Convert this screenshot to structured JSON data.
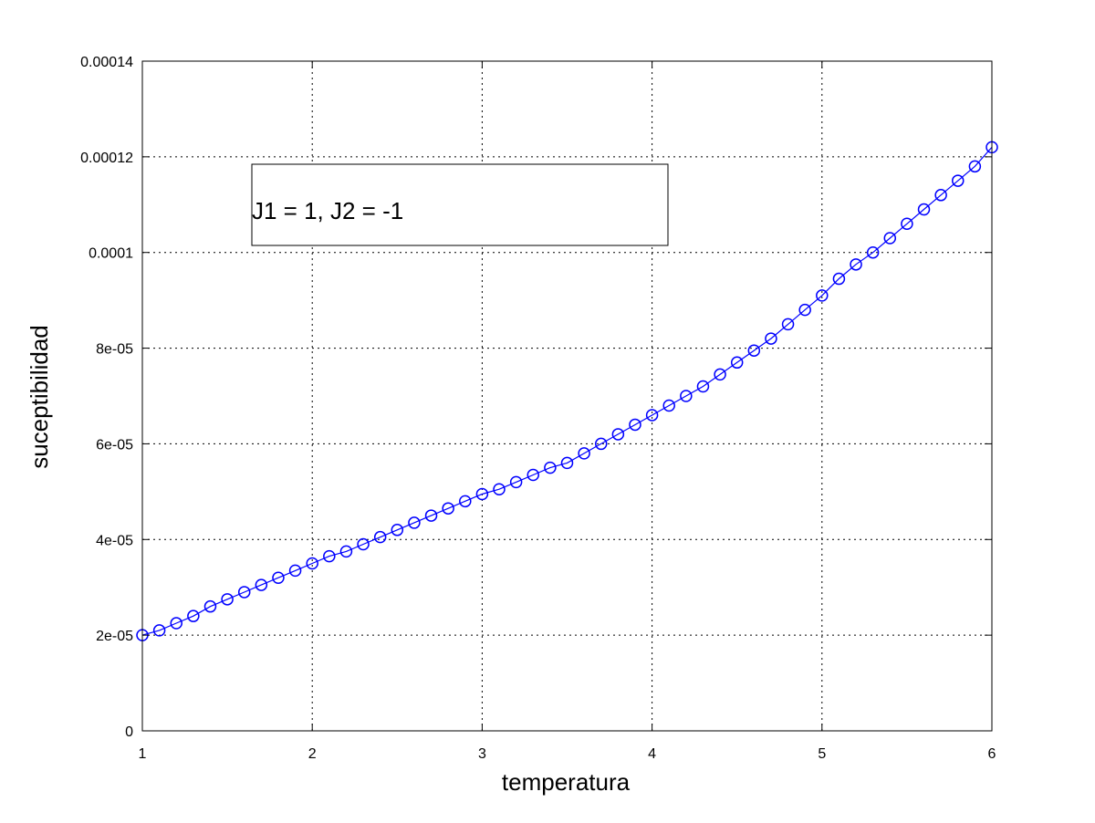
{
  "chart_data": {
    "type": "line",
    "xlabel": "temperatura",
    "ylabel": "suceptibilidad",
    "xlim": [
      1,
      6
    ],
    "ylim": [
      0,
      0.00014
    ],
    "x_ticks": [
      "1",
      "2",
      "3",
      "4",
      "5",
      "6"
    ],
    "y_ticks": [
      "0",
      "2e-05",
      "4e-05",
      "6e-05",
      "8e-05",
      "0.0001",
      "0.00012",
      "0.00014"
    ],
    "grid": true,
    "legend_position": "top-left",
    "annotation": "J1 = 1, J2 = -1",
    "series": [
      {
        "color": "#0000ff",
        "marker": "circle",
        "x": [
          1.0,
          1.1,
          1.2,
          1.3,
          1.4,
          1.5,
          1.6,
          1.7,
          1.8,
          1.9,
          2.0,
          2.1,
          2.2,
          2.3,
          2.4,
          2.5,
          2.6,
          2.7,
          2.8,
          2.9,
          3.0,
          3.1,
          3.2,
          3.3,
          3.4,
          3.5,
          3.6,
          3.7,
          3.8,
          3.9,
          4.0,
          4.1,
          4.2,
          4.3,
          4.4,
          4.5,
          4.6,
          4.7,
          4.8,
          4.9,
          5.0,
          5.1,
          5.2,
          5.3,
          5.4,
          5.5,
          5.6,
          5.7,
          5.8,
          5.9,
          6.0
        ],
        "y": [
          2e-05,
          2.1e-05,
          2.25e-05,
          2.4e-05,
          2.6e-05,
          2.75e-05,
          2.9e-05,
          3.05e-05,
          3.2e-05,
          3.35e-05,
          3.5e-05,
          3.65e-05,
          3.75e-05,
          3.9e-05,
          4.05e-05,
          4.2e-05,
          4.35e-05,
          4.5e-05,
          4.65e-05,
          4.8e-05,
          4.95e-05,
          5.05e-05,
          5.2e-05,
          5.35e-05,
          5.5e-05,
          5.6e-05,
          5.8e-05,
          6e-05,
          6.2e-05,
          6.4e-05,
          6.6e-05,
          6.8e-05,
          7e-05,
          7.2e-05,
          7.45e-05,
          7.7e-05,
          7.95e-05,
          8.2e-05,
          8.5e-05,
          8.8e-05,
          9.1e-05,
          9.45e-05,
          9.75e-05,
          0.0001,
          0.000103,
          0.000106,
          0.000109,
          0.000112,
          0.000115,
          0.000118,
          0.000122
        ]
      }
    ]
  }
}
